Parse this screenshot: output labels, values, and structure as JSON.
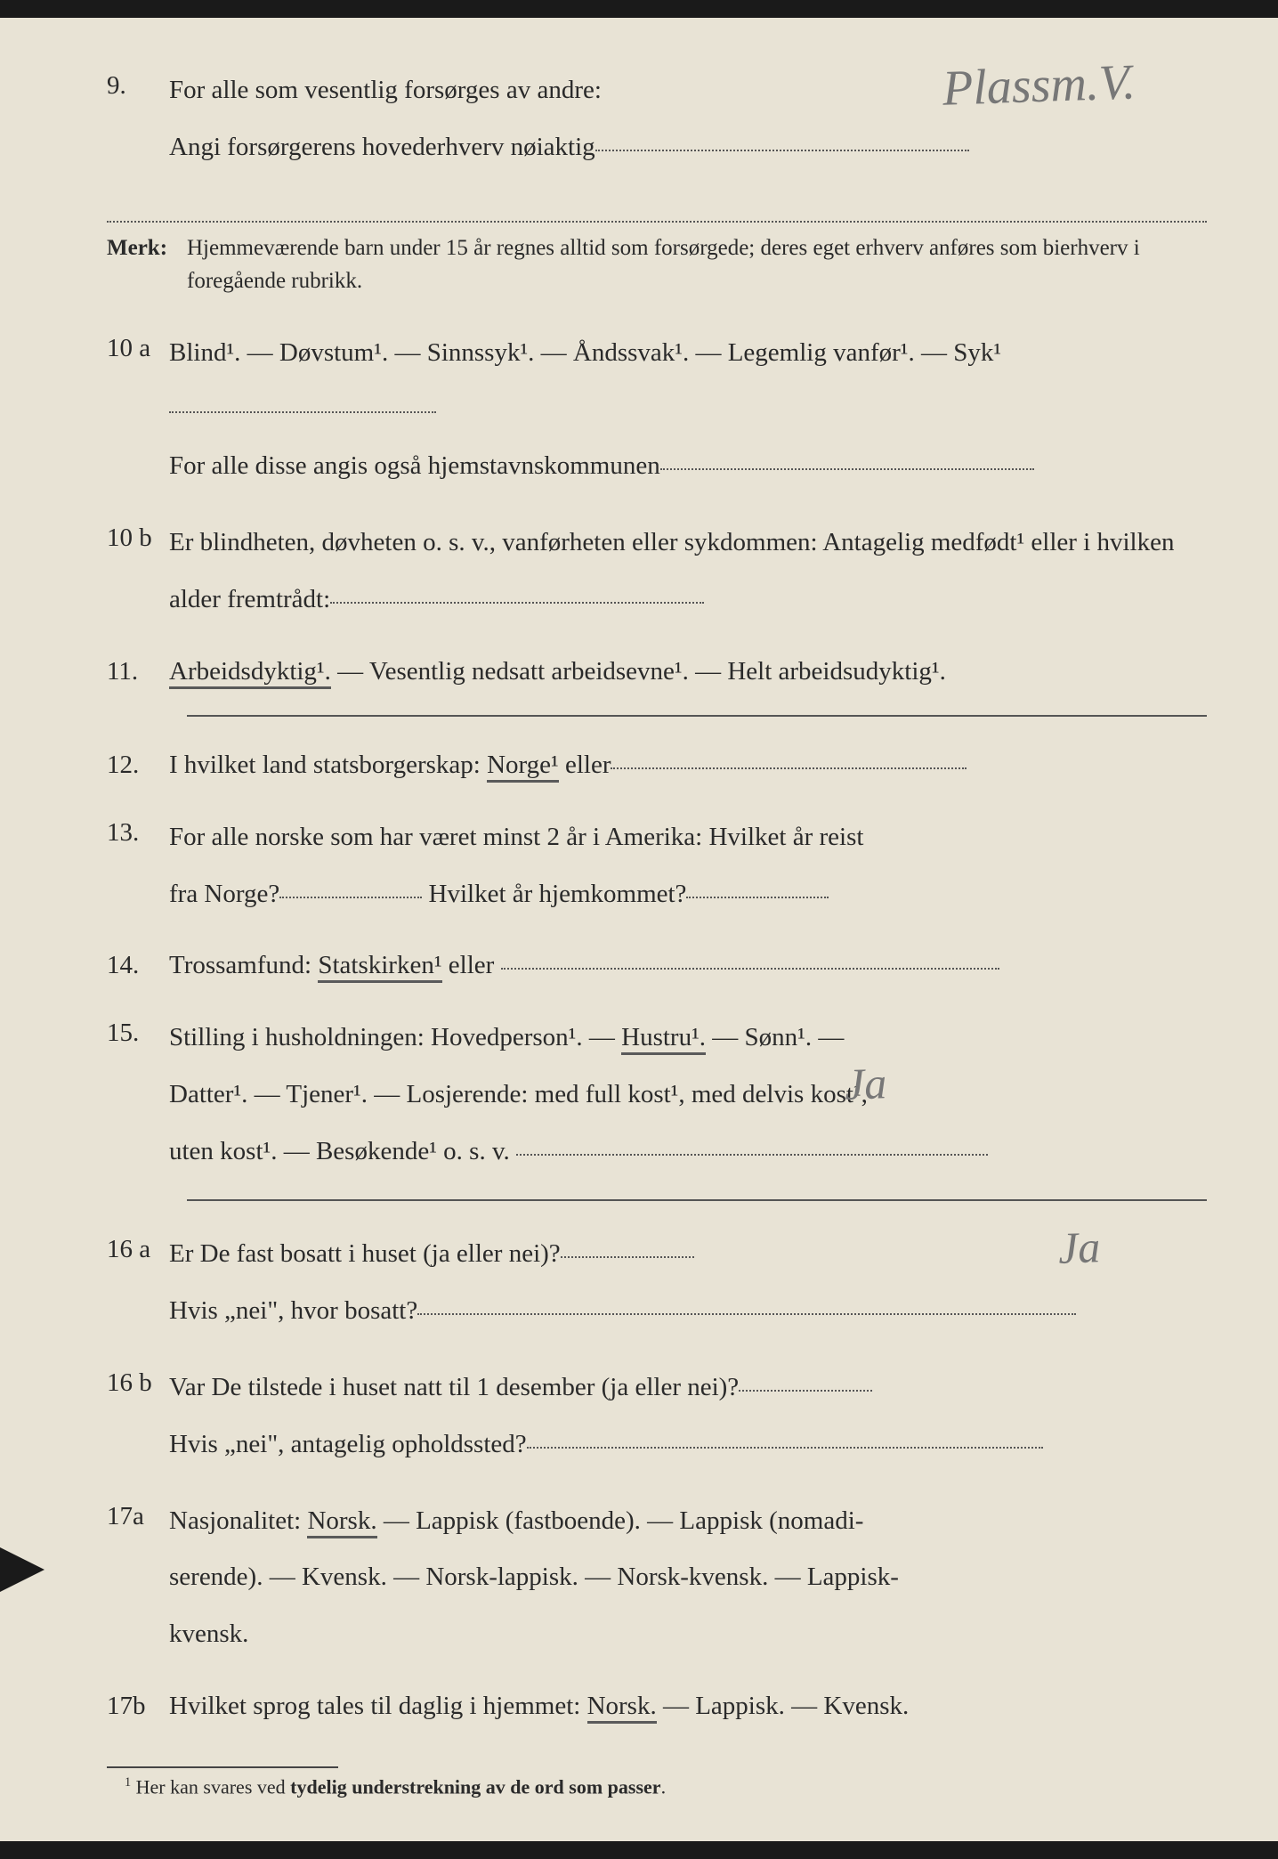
{
  "colors": {
    "page_bg": "#e8e3d5",
    "text": "#2a2a2a",
    "dotted": "#555555",
    "handwriting": "#777777",
    "underline": "#5a5a5a"
  },
  "typography": {
    "body_fontsize": 29,
    "merk_fontsize": 25,
    "footnote_fontsize": 22,
    "handwriting_fontsize": 56
  },
  "handwritten": {
    "answer9": "Plassm.V.",
    "answer16a": "Ja",
    "answer16b": "Ja"
  },
  "q9": {
    "num": "9.",
    "line1": "For alle som vesentlig forsørges av andre:",
    "line2": "Angi forsørgerens hovederhverv nøiaktig"
  },
  "merk": {
    "label": "Merk:",
    "text": "Hjemmeværende barn under 15 år regnes alltid som forsørgede; deres eget erhverv anføres som bierhverv i foregående rubrikk."
  },
  "q10a": {
    "num": "10 a",
    "opts": "Blind¹.  —  Døvstum¹.  —  Sinnssyk¹.  —  Åndssvak¹.  —  Legemlig vanfør¹.  —  Syk¹",
    "line2": "For alle disse angis også hjemstavnskommunen"
  },
  "q10b": {
    "num": "10 b",
    "text": "Er blindheten, døvheten o. s. v., vanførheten eller sykdommen: Antagelig medfødt¹ eller i hvilken alder fremtrådt:"
  },
  "q11": {
    "num": "11.",
    "opt1": "Arbeidsdyktig¹.",
    "rest": " — Vesentlig nedsatt arbeidsevne¹. — Helt arbeidsudyktig¹."
  },
  "q12": {
    "num": "12.",
    "pre": "I hvilket land statsborgerskap: ",
    "sel": "Norge¹",
    "post": " eller"
  },
  "q13": {
    "num": "13.",
    "line1": "For alle norske som har været minst 2 år i Amerika:  Hvilket år reist",
    "line2a": "fra Norge?",
    "line2b": " Hvilket år hjemkommet?"
  },
  "q14": {
    "num": "14.",
    "pre": "Trossamfund:  ",
    "sel": "Statskirken¹",
    "post": " eller "
  },
  "q15": {
    "num": "15.",
    "pre": "Stilling i husholdningen:  Hovedperson¹.  —  ",
    "sel": "Hustru¹.",
    "post1": "  —  Sønn¹.  —",
    "line2": "Datter¹.  —  Tjener¹.  —  Losjerende:  med full kost¹, med delvis kost¹,",
    "line3": "uten kost¹.  —  Besøkende¹ o. s. v. "
  },
  "q16a": {
    "num": "16 a",
    "line1": "Er De fast bosatt i huset (ja eller nei)?",
    "line2": "Hvis „nei\", hvor bosatt?"
  },
  "q16b": {
    "num": "16 b",
    "line1": "Var De tilstede i huset natt til 1 desember (ja eller nei)?",
    "line2": "Hvis „nei\", antagelig opholdssted?"
  },
  "q17a": {
    "num": "17a",
    "pre": "Nasjonalitet:  ",
    "sel": "Norsk.",
    "post": "  —  Lappisk (fastboende).  —  Lappisk (nomadi-",
    "line2": "serende).  —  Kvensk.  —  Norsk-lappisk.  —  Norsk-kvensk.  —  Lappisk-",
    "line3": "kvensk."
  },
  "q17b": {
    "num": "17b",
    "pre": "Hvilket sprog tales til daglig i hjemmet: ",
    "sel": "Norsk.",
    "post": " — Lappisk. — Kvensk."
  },
  "footnote": {
    "sup": "1",
    "text": " Her kan svares ved tydelig understrekning av de ord som passer."
  }
}
